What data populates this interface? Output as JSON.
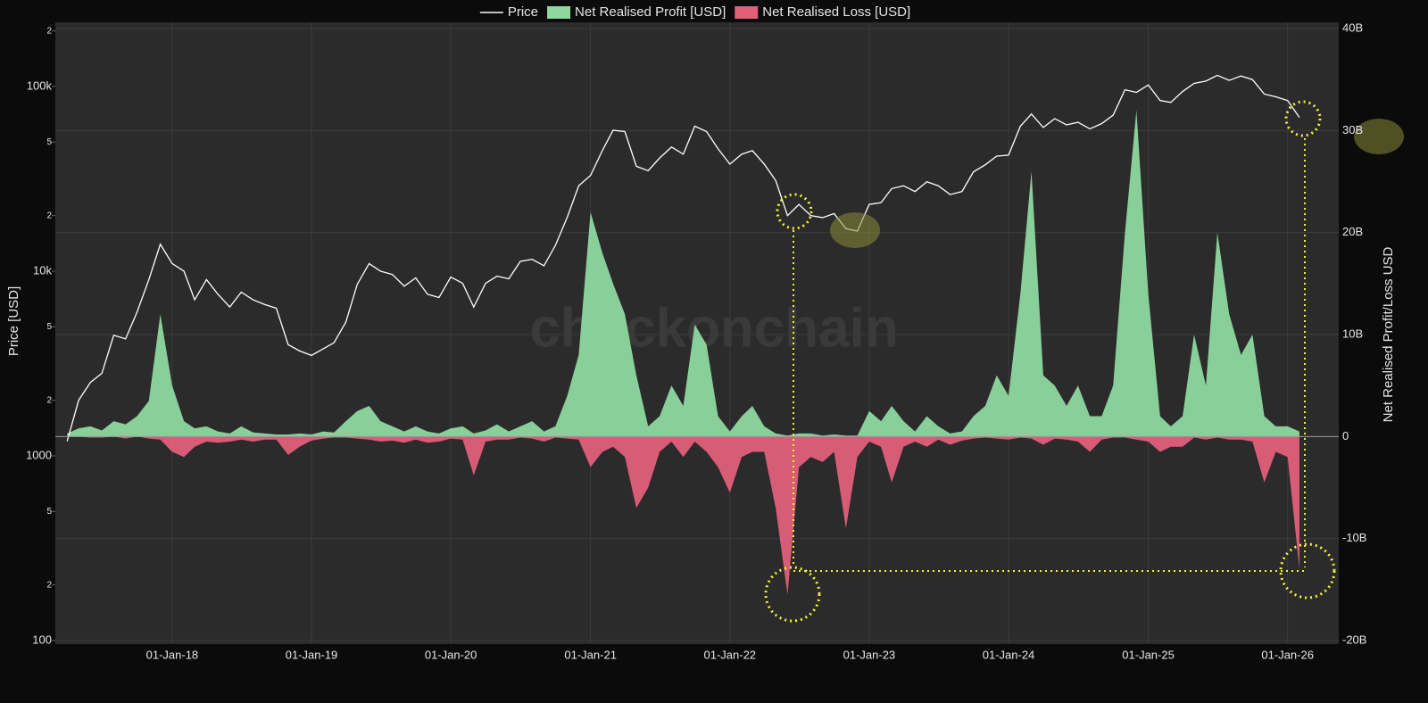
{
  "chart_data": {
    "type": "line-area",
    "title": null,
    "watermark": "checkonchain",
    "y_label": "Price [USD]",
    "y2_label": "Net Realised Profit/Loss USD",
    "ylog": true,
    "grid": true,
    "x": [
      "2017-04-01",
      "2017-05-01",
      "2017-06-01",
      "2017-07-01",
      "2017-08-01",
      "2017-09-01",
      "2017-10-01",
      "2017-11-01",
      "2017-12-01",
      "2018-01-01",
      "2018-02-01",
      "2018-03-01",
      "2018-04-01",
      "2018-05-01",
      "2018-06-01",
      "2018-07-01",
      "2018-08-01",
      "2018-09-01",
      "2018-10-01",
      "2018-11-01",
      "2018-12-01",
      "2019-01-01",
      "2019-02-01",
      "2019-03-01",
      "2019-04-01",
      "2019-05-01",
      "2019-06-01",
      "2019-07-01",
      "2019-08-01",
      "2019-09-01",
      "2019-10-01",
      "2019-11-01",
      "2019-12-01",
      "2020-01-01",
      "2020-02-01",
      "2020-03-01",
      "2020-04-01",
      "2020-05-01",
      "2020-06-01",
      "2020-07-01",
      "2020-08-01",
      "2020-09-01",
      "2020-10-01",
      "2020-11-01",
      "2020-12-01",
      "2021-01-01",
      "2021-02-01",
      "2021-03-01",
      "2021-04-01",
      "2021-05-01",
      "2021-06-01",
      "2021-07-01",
      "2021-08-01",
      "2021-09-01",
      "2021-10-01",
      "2021-11-01",
      "2021-12-01",
      "2022-01-01",
      "2022-02-01",
      "2022-03-01",
      "2022-04-01",
      "2022-05-01",
      "2022-06-01",
      "2022-07-01",
      "2022-08-01",
      "2022-09-01",
      "2022-10-01",
      "2022-11-01",
      "2022-12-01",
      "2023-01-01",
      "2023-02-01",
      "2023-03-01",
      "2023-04-01",
      "2023-05-01",
      "2023-06-01",
      "2023-07-01",
      "2023-08-01",
      "2023-09-01",
      "2023-10-01",
      "2023-11-01",
      "2023-12-01",
      "2024-01-01",
      "2024-02-01",
      "2024-03-01",
      "2024-04-01",
      "2024-05-01",
      "2024-06-01",
      "2024-07-01",
      "2024-08-01",
      "2024-09-01",
      "2024-10-01",
      "2024-11-01",
      "2024-12-01",
      "2025-01-01",
      "2025-02-01",
      "2025-03-01",
      "2025-04-01",
      "2025-05-01",
      "2025-06-01",
      "2025-07-01",
      "2025-08-01",
      "2025-09-01",
      "2025-10-01",
      "2025-11-01",
      "2025-12-01",
      "2026-01-01",
      "2026-02-01"
    ],
    "series": [
      {
        "name": "Price",
        "color": "#ffffff",
        "axis": "y",
        "values": [
          1200,
          2000,
          2500,
          2800,
          4500,
          4300,
          6000,
          9000,
          14000,
          11000,
          10000,
          7000,
          9000,
          7500,
          6400,
          7700,
          7000,
          6600,
          6300,
          4000,
          3700,
          3500,
          3800,
          4100,
          5300,
          8500,
          11000,
          10000,
          9600,
          8300,
          9200,
          7500,
          7200,
          9300,
          8600,
          6400,
          8600,
          9400,
          9100,
          11300,
          11600,
          10700,
          13800,
          19600,
          29000,
          33000,
          45000,
          58000,
          57000,
          37000,
          35000,
          41000,
          47000,
          43000,
          61000,
          57000,
          46000,
          38000,
          43000,
          45000,
          38000,
          31000,
          20000,
          23000,
          20000,
          19500,
          20500,
          17000,
          16500,
          23000,
          23500,
          28000,
          29000,
          27000,
          30500,
          29000,
          26000,
          27000,
          34500,
          37700,
          42000,
          42500,
          61000,
          71000,
          60000,
          67000,
          62000,
          64000,
          59000,
          63000,
          70000,
          96000,
          93000,
          102000,
          84000,
          82000,
          94000,
          104000,
          107000,
          115000,
          108000,
          114000,
          109000,
          91000,
          88000,
          84000,
          68000
        ]
      },
      {
        "name": "Net Realised Profit [USD]",
        "color": "#8ed8a0",
        "axis": "y2",
        "values": [
          0.3,
          0.8,
          1.0,
          0.6,
          1.5,
          1.2,
          2,
          3.5,
          12,
          5,
          1.5,
          0.8,
          1,
          0.5,
          0.3,
          1,
          0.4,
          0.3,
          0.2,
          0.2,
          0.3,
          0.2,
          0.5,
          0.4,
          1.5,
          2.5,
          3,
          1.5,
          1,
          0.5,
          1,
          0.5,
          0.3,
          0.8,
          1,
          0.3,
          0.6,
          1.2,
          0.5,
          1,
          1.5,
          0.5,
          1,
          4,
          8,
          22,
          18,
          15,
          12,
          6,
          1,
          2,
          5,
          3,
          11,
          9,
          2,
          0.5,
          2,
          3,
          1,
          0.3,
          0.1,
          0.3,
          0.3,
          0.1,
          0.2,
          0.1,
          0.1,
          2.5,
          1.5,
          3,
          1.5,
          0.5,
          2,
          1,
          0.3,
          0.5,
          2,
          3,
          6,
          4,
          14,
          26,
          6,
          5,
          3,
          5,
          2,
          2,
          5,
          20,
          32,
          14,
          2,
          1,
          2,
          10,
          5,
          20,
          12,
          8,
          10,
          2,
          1,
          1,
          0.5
        ]
      },
      {
        "name": "Net Realised Loss [USD]",
        "color": "#e0607a",
        "axis": "y2",
        "values": [
          0,
          0,
          -0.1,
          -0.1,
          0,
          -0.2,
          0,
          -0.2,
          -0.3,
          -1.5,
          -2,
          -1,
          -0.5,
          -0.6,
          -0.5,
          -0.3,
          -0.5,
          -0.3,
          -0.3,
          -1.8,
          -1,
          -0.4,
          -0.2,
          -0.1,
          -0.1,
          -0.2,
          -0.3,
          -0.5,
          -0.4,
          -0.6,
          -0.3,
          -0.6,
          -0.5,
          -0.2,
          -0.3,
          -3.8,
          -0.5,
          -0.3,
          -0.3,
          -0.1,
          -0.2,
          -0.5,
          -0.1,
          -0.2,
          -0.3,
          -3,
          -1.5,
          -1,
          -2,
          -7,
          -5,
          -1.5,
          -0.5,
          -2,
          -0.5,
          -1.5,
          -3,
          -5.5,
          -2,
          -1.5,
          -1.5,
          -7,
          -15.5,
          -3,
          -2,
          -2.5,
          -1.5,
          -9,
          -2,
          -0.5,
          -1,
          -4.5,
          -1,
          -0.5,
          -1,
          -0.3,
          -0.8,
          -0.4,
          -0.2,
          -0.1,
          -0.2,
          -0.3,
          -0.1,
          -0.2,
          -0.8,
          -0.2,
          -0.3,
          -0.5,
          -1.5,
          -0.3,
          -0.1,
          -0.1,
          -0.3,
          -0.5,
          -1.5,
          -1,
          -1,
          -0.1,
          -0.3,
          -0.1,
          -0.3,
          -0.3,
          -0.5,
          -4.5,
          -1.5,
          -2,
          -13
        ]
      }
    ],
    "xlim": [
      "2017-03-01",
      "2026-05-15"
    ],
    "xticks": [
      {
        "value": "2018-01-01",
        "label": "01-Jan-18"
      },
      {
        "value": "2019-01-01",
        "label": "01-Jan-19"
      },
      {
        "value": "2020-01-01",
        "label": "01-Jan-20"
      },
      {
        "value": "2021-01-01",
        "label": "01-Jan-21"
      },
      {
        "value": "2022-01-01",
        "label": "01-Jan-22"
      },
      {
        "value": "2023-01-01",
        "label": "01-Jan-23"
      },
      {
        "value": "2024-01-01",
        "label": "01-Jan-24"
      },
      {
        "value": "2025-01-01",
        "label": "01-Jan-25"
      },
      {
        "value": "2026-01-01",
        "label": "01-Jan-26"
      }
    ],
    "ylim": [
      100,
      206000
    ],
    "yticks": [
      100,
      {
        "value": 200,
        "label": "2"
      },
      {
        "value": 500,
        "label": "5"
      },
      1000,
      {
        "value": 2000,
        "label": "2"
      },
      {
        "value": 5000,
        "label": "5"
      },
      {
        "value": 10000,
        "label": "10k"
      },
      {
        "value": 20000,
        "label": "2"
      },
      {
        "value": 50000,
        "label": "5"
      },
      {
        "value": 100000,
        "label": "100k"
      },
      {
        "value": 200000,
        "label": "2"
      }
    ],
    "y2lim": [
      -20,
      40
    ],
    "y2ticks": [
      {
        "value": -20,
        "label": "-20B"
      },
      {
        "value": -10,
        "label": "-10B"
      },
      0,
      {
        "value": 10,
        "label": "10B"
      },
      {
        "value": 20,
        "label": "20B"
      },
      {
        "value": 30,
        "label": "30B"
      },
      {
        "value": 40,
        "label": "40B"
      }
    ]
  }
}
